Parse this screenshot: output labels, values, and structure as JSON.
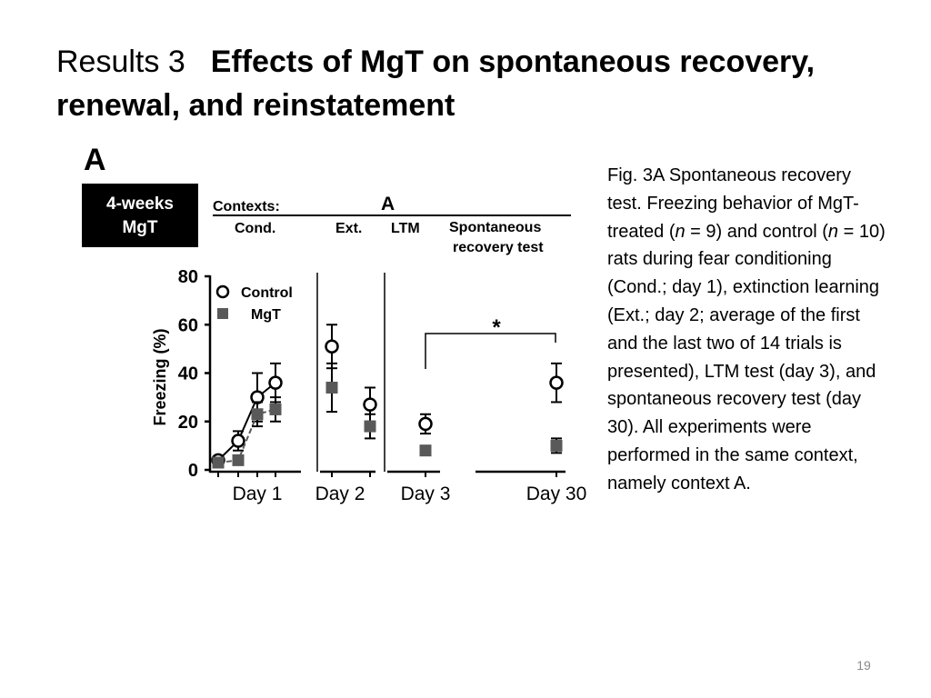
{
  "title": {
    "prefix": "Results 3",
    "main": "Effects of MgT on spontaneous recovery, renewal, and reinstatement"
  },
  "figure": {
    "panel_label": "A",
    "treatment_box": [
      "4-weeks",
      "MgT"
    ],
    "contexts_label": "Contexts:",
    "context_value": "A",
    "phases": [
      "Cond.",
      "Ext.",
      "LTM",
      "Spontaneous",
      "recovery test"
    ]
  },
  "caption": {
    "lead": "Fig. 3A Spontaneous recovery test. Freezing behavior of MgT-treated (",
    "n_symbol": "n",
    "n_mgt": " = 9) and control (",
    "n_control": " = 10) rats during fear conditioning (Cond.; day 1), extinction learning (Ext.; day 2; average of the first and the last two of 14 trials is presented), LTM test (day 3), and spontaneous recovery test (day 30). All experiments were performed in the same context, namely context A."
  },
  "page_number": "19",
  "chart_data": {
    "type": "scatter",
    "ylabel": "Freezing (%)",
    "ylim": [
      0,
      80
    ],
    "yticks": [
      "0",
      "20",
      "40",
      "60",
      "80"
    ],
    "x_groups": [
      "Day 1",
      "Day 2",
      "Day 3",
      "Day 30"
    ],
    "legend_position": "top-left",
    "significance_label": "*",
    "series": [
      {
        "name": "Control",
        "marker": "open-circle",
        "color": "#000000",
        "points": [
          {
            "group": "Day 1",
            "trial": 1,
            "y": 4,
            "err": 1
          },
          {
            "group": "Day 1",
            "trial": 2,
            "y": 12,
            "err": 4
          },
          {
            "group": "Day 1",
            "trial": 3,
            "y": 30,
            "err": 10
          },
          {
            "group": "Day 1",
            "trial": 4,
            "y": 36,
            "err": 8
          },
          {
            "group": "Day 2",
            "trial": 1,
            "y": 51,
            "err": 9
          },
          {
            "group": "Day 2",
            "trial": 2,
            "y": 27,
            "err": 7
          },
          {
            "group": "Day 3",
            "trial": 1,
            "y": 19,
            "err": 4
          },
          {
            "group": "Day 30",
            "trial": 1,
            "y": 36,
            "err": 8
          }
        ]
      },
      {
        "name": "MgT",
        "marker": "filled-square",
        "color": "#595959",
        "points": [
          {
            "group": "Day 1",
            "trial": 1,
            "y": 3,
            "err": 1
          },
          {
            "group": "Day 1",
            "trial": 2,
            "y": 4,
            "err": 1
          },
          {
            "group": "Day 1",
            "trial": 3,
            "y": 23,
            "err": 5
          },
          {
            "group": "Day 1",
            "trial": 4,
            "y": 25,
            "err": 5
          },
          {
            "group": "Day 2",
            "trial": 1,
            "y": 34,
            "err": 10
          },
          {
            "group": "Day 2",
            "trial": 2,
            "y": 18,
            "err": 5
          },
          {
            "group": "Day 3",
            "trial": 1,
            "y": 8,
            "err": 1
          },
          {
            "group": "Day 30",
            "trial": 1,
            "y": 10,
            "err": 3
          }
        ]
      }
    ]
  }
}
